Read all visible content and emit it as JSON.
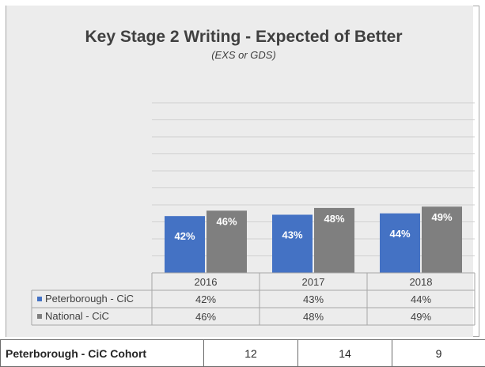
{
  "chart_data": {
    "type": "bar",
    "title": "Key Stage 2 Writing - Expected of Better",
    "subtitle": "(EXS or GDS)",
    "categories": [
      "2016",
      "2017",
      "2018"
    ],
    "ylim": [
      0,
      100
    ],
    "grid": true,
    "data_table": true,
    "series": [
      {
        "name": "Peterborough - CiC",
        "values": [
          42,
          43,
          44
        ],
        "labels": [
          "42%",
          "43%",
          "44%"
        ],
        "color": "#4472c4"
      },
      {
        "name": "National - CiC",
        "values": [
          46,
          48,
          49
        ],
        "labels": [
          "46%",
          "48%",
          "49%"
        ],
        "color": "#7f7f7f"
      }
    ]
  },
  "cohort_table": {
    "label": "Peterborough - CiC Cohort",
    "values": [
      "12",
      "14",
      "9"
    ]
  }
}
